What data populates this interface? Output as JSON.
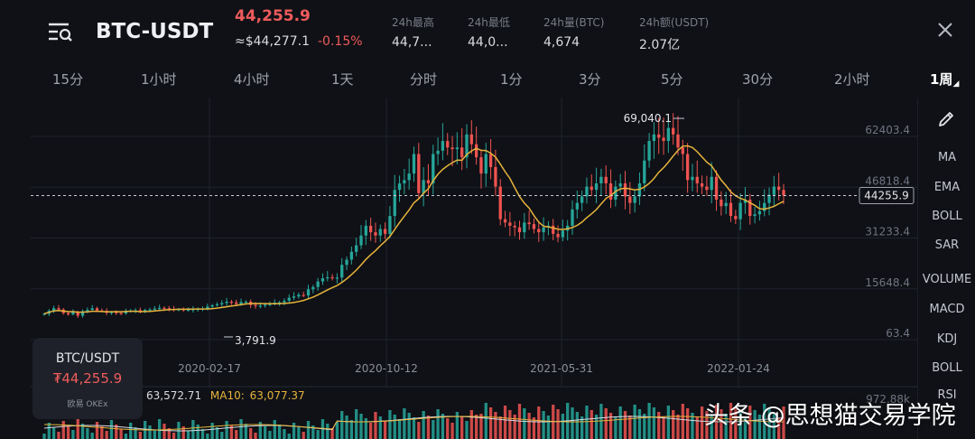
{
  "header": {
    "symbol": "BTC-USDT",
    "last_price": "44,255.9",
    "ref_price": "≈$44,277.1",
    "change_pct": "-0.15%",
    "stats": [
      {
        "label": "24h最高",
        "value": "44,7..."
      },
      {
        "label": "24h最低",
        "value": "44,0..."
      },
      {
        "label": "24h量(BTC)",
        "value": "4,674"
      },
      {
        "label": "24h额(USDT)",
        "value": "2.07亿"
      }
    ]
  },
  "tabs": [
    "15分",
    "1小时",
    "4小时",
    "1天",
    "分时",
    "1分",
    "3分",
    "5分",
    "30分",
    "2小时",
    "1周"
  ],
  "active_tab": "1周",
  "indicators": [
    "MA",
    "EMA",
    "BOLL",
    "SAR",
    "VOLUME",
    "MACD",
    "KDJ",
    "BOLL",
    "RSI"
  ],
  "card": {
    "symbol": "BTC/USDT",
    "price": "₮44,255.9",
    "brand": "欧易 OKEx"
  },
  "legend": {
    "ma5": "63,572.71",
    "ma10_label": "MA10:",
    "ma10": "63,077.37"
  },
  "watermark": "头条 @思想猫交易学院",
  "colors": {
    "up": "#26a69a",
    "down": "#ef5350",
    "ma": "#e7b43c",
    "bg": "#0f1116"
  },
  "chart_data": {
    "type": "candlestick",
    "interval": "1周",
    "y_ticks": [
      "62403.4",
      "46818.4",
      "31233.4",
      "15648.4",
      "63.4"
    ],
    "x_ticks": [
      "2020-02-17",
      "2020-10-12",
      "2021-05-31",
      "2022-01-24"
    ],
    "current_price_label": "44255.9",
    "high_label": "69,040.1",
    "low_label": "3,791.9",
    "volume_axis_label": "972.88k",
    "price_series_close": [
      8000,
      8900,
      9700,
      9300,
      8200,
      7800,
      8600,
      7400,
      8800,
      9200,
      9700,
      9000,
      8900,
      8300,
      8500,
      8200,
      8100,
      8700,
      9000,
      9100,
      8800,
      9200,
      9300,
      9600,
      9800,
      9700,
      9500,
      9300,
      9400,
      9100,
      9200,
      9400,
      9500,
      9600,
      10200,
      10600,
      10900,
      11300,
      11700,
      11500,
      11000,
      11600,
      11700,
      10700,
      10400,
      10500,
      10800,
      11000,
      11400,
      11500,
      12000,
      12900,
      13300,
      13800,
      13600,
      15500,
      16200,
      17900,
      18900,
      19200,
      19000,
      19100,
      23000,
      24600,
      27000,
      29000,
      32000,
      35000,
      33000,
      32000,
      34000,
      32500,
      38000,
      46000,
      48000,
      49000,
      51000,
      57000,
      45000,
      49000,
      48000,
      57000,
      58000,
      61000,
      59000,
      58500,
      59000,
      56000,
      63000,
      60000,
      56000,
      51000,
      57000,
      53000,
      47000,
      37000,
      36000,
      35000,
      34500,
      33000,
      36000,
      35500,
      34000,
      33000,
      34500,
      35000,
      32500,
      31500,
      33500,
      35000,
      40000,
      42000,
      44000,
      47000,
      46000,
      48000,
      50000,
      48000,
      43000,
      47000,
      48000,
      44000,
      42000,
      44000,
      48000,
      55000,
      61000,
      63000,
      62000,
      61000,
      65000,
      63000,
      59000,
      57000,
      49000,
      50000,
      48000,
      47000,
      46000,
      50000,
      43000,
      41000,
      42000,
      38000,
      37000,
      42000,
      43000,
      38000,
      38500,
      39500,
      42000,
      44500,
      47000,
      46000,
      44255.9
    ],
    "ma_series_description": "MA10 line"
  }
}
